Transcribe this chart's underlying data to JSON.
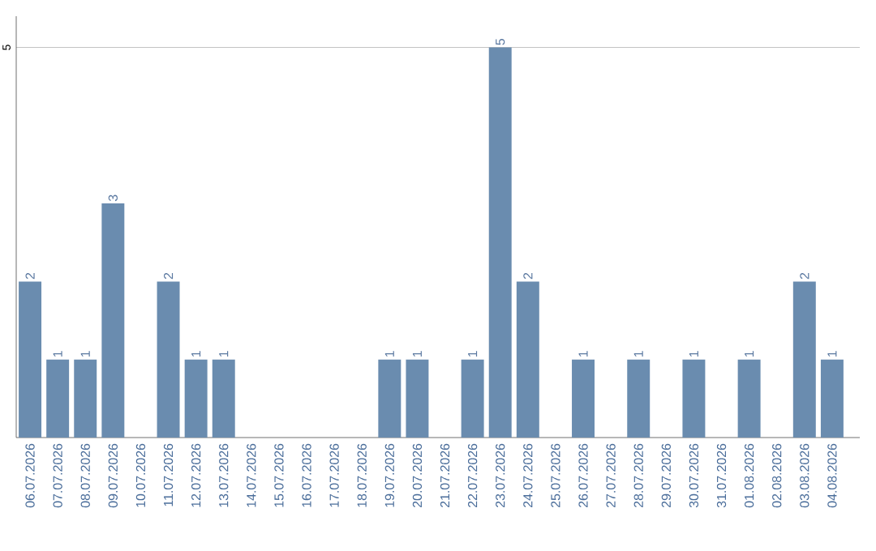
{
  "chart_data": {
    "type": "bar",
    "categories": [
      "06.07.2026",
      "07.07.2026",
      "08.07.2026",
      "09.07.2026",
      "10.07.2026",
      "11.07.2026",
      "12.07.2026",
      "13.07.2026",
      "14.07.2026",
      "15.07.2026",
      "16.07.2026",
      "17.07.2026",
      "18.07.2026",
      "19.07.2026",
      "20.07.2026",
      "21.07.2026",
      "22.07.2026",
      "23.07.2026",
      "24.07.2026",
      "25.07.2026",
      "26.07.2026",
      "27.07.2026",
      "28.07.2026",
      "29.07.2026",
      "30.07.2026",
      "31.07.2026",
      "01.08.2026",
      "02.08.2026",
      "03.08.2026",
      "04.08.2026"
    ],
    "values": [
      2,
      1,
      1,
      3,
      0,
      2,
      1,
      1,
      0,
      0,
      0,
      0,
      0,
      1,
      1,
      0,
      1,
      5,
      2,
      0,
      1,
      0,
      1,
      0,
      1,
      0,
      1,
      0,
      2,
      1
    ],
    "value_labels": [
      "2",
      "1",
      "1",
      "3",
      null,
      "2",
      "1",
      "1",
      null,
      null,
      null,
      null,
      null,
      "1",
      "1",
      null,
      "1",
      "5",
      "2",
      null,
      "1",
      null,
      "1",
      null,
      "1",
      null,
      "1",
      null,
      "2",
      "1"
    ],
    "color": "#6a8caf",
    "ylim": [
      0,
      5.4
    ],
    "yticks": [
      5
    ],
    "grid": "y"
  }
}
